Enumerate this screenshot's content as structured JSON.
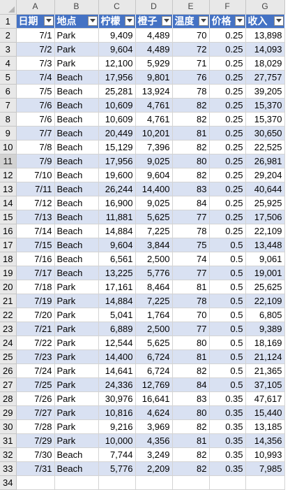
{
  "sheet": {
    "column_letters": [
      "A",
      "B",
      "C",
      "D",
      "E",
      "F",
      "G"
    ],
    "headers": [
      "日期",
      "地点",
      "柠檬",
      "橙子",
      "温度",
      "价格",
      "收入"
    ],
    "row_numbers": [
      "1",
      "2",
      "3",
      "4",
      "5",
      "6",
      "7",
      "8",
      "9",
      "10",
      "11",
      "12",
      "13",
      "14",
      "15",
      "16",
      "17",
      "18",
      "19",
      "20",
      "21",
      "22",
      "23",
      "24",
      "25",
      "26",
      "27",
      "28",
      "29",
      "30",
      "31",
      "32",
      "33",
      "34"
    ],
    "active_row": "11",
    "rows": [
      [
        "7/1",
        "Park",
        "9,409",
        "4,489",
        "70",
        "0.25",
        "13,898"
      ],
      [
        "7/2",
        "Park",
        "9,604",
        "4,489",
        "72",
        "0.25",
        "14,093"
      ],
      [
        "7/3",
        "Park",
        "12,100",
        "5,929",
        "71",
        "0.25",
        "18,029"
      ],
      [
        "7/4",
        "Beach",
        "17,956",
        "9,801",
        "76",
        "0.25",
        "27,757"
      ],
      [
        "7/5",
        "Beach",
        "25,281",
        "13,924",
        "78",
        "0.25",
        "39,205"
      ],
      [
        "7/6",
        "Beach",
        "10,609",
        "4,761",
        "82",
        "0.25",
        "15,370"
      ],
      [
        "7/6",
        "Beach",
        "10,609",
        "4,761",
        "82",
        "0.25",
        "15,370"
      ],
      [
        "7/7",
        "Beach",
        "20,449",
        "10,201",
        "81",
        "0.25",
        "30,650"
      ],
      [
        "7/8",
        "Beach",
        "15,129",
        "7,396",
        "82",
        "0.25",
        "22,525"
      ],
      [
        "7/9",
        "Beach",
        "17,956",
        "9,025",
        "80",
        "0.25",
        "26,981"
      ],
      [
        "7/10",
        "Beach",
        "19,600",
        "9,604",
        "82",
        "0.25",
        "29,204"
      ],
      [
        "7/11",
        "Beach",
        "26,244",
        "14,400",
        "83",
        "0.25",
        "40,644"
      ],
      [
        "7/12",
        "Beach",
        "16,900",
        "9,025",
        "84",
        "0.25",
        "25,925"
      ],
      [
        "7/13",
        "Beach",
        "11,881",
        "5,625",
        "77",
        "0.25",
        "17,506"
      ],
      [
        "7/14",
        "Beach",
        "14,884",
        "7,225",
        "78",
        "0.25",
        "22,109"
      ],
      [
        "7/15",
        "Beach",
        "9,604",
        "3,844",
        "75",
        "0.5",
        "13,448"
      ],
      [
        "7/16",
        "Beach",
        "6,561",
        "2,500",
        "74",
        "0.5",
        "9,061"
      ],
      [
        "7/17",
        "Beach",
        "13,225",
        "5,776",
        "77",
        "0.5",
        "19,001"
      ],
      [
        "7/18",
        "Park",
        "17,161",
        "8,464",
        "81",
        "0.5",
        "25,625"
      ],
      [
        "7/19",
        "Park",
        "14,884",
        "7,225",
        "78",
        "0.5",
        "22,109"
      ],
      [
        "7/20",
        "Park",
        "5,041",
        "1,764",
        "70",
        "0.5",
        "6,805"
      ],
      [
        "7/21",
        "Park",
        "6,889",
        "2,500",
        "77",
        "0.5",
        "9,389"
      ],
      [
        "7/22",
        "Park",
        "12,544",
        "5,625",
        "80",
        "0.5",
        "18,169"
      ],
      [
        "7/23",
        "Park",
        "14,400",
        "6,724",
        "81",
        "0.5",
        "21,124"
      ],
      [
        "7/24",
        "Park",
        "14,641",
        "6,724",
        "82",
        "0.5",
        "21,365"
      ],
      [
        "7/25",
        "Park",
        "24,336",
        "12,769",
        "84",
        "0.5",
        "37,105"
      ],
      [
        "7/26",
        "Park",
        "30,976",
        "16,641",
        "83",
        "0.35",
        "47,617"
      ],
      [
        "7/27",
        "Park",
        "10,816",
        "4,624",
        "80",
        "0.35",
        "15,440"
      ],
      [
        "7/28",
        "Park",
        "9,216",
        "3,969",
        "82",
        "0.35",
        "13,185"
      ],
      [
        "7/29",
        "Park",
        "10,000",
        "4,356",
        "81",
        "0.35",
        "14,356"
      ],
      [
        "7/30",
        "Beach",
        "7,744",
        "3,249",
        "82",
        "0.35",
        "10,993"
      ],
      [
        "7/31",
        "Beach",
        "5,776",
        "2,209",
        "82",
        "0.35",
        "7,985"
      ]
    ],
    "colors": {
      "header_fill": "#4472c4",
      "band_fill": "#d9e1f2",
      "grid_line": "#d4d4d4",
      "row_col_header_bg": "#e8e8e8"
    },
    "icons": {
      "filter": "filter-dropdown-icon",
      "select_all": "select-all-triangle-icon"
    }
  }
}
